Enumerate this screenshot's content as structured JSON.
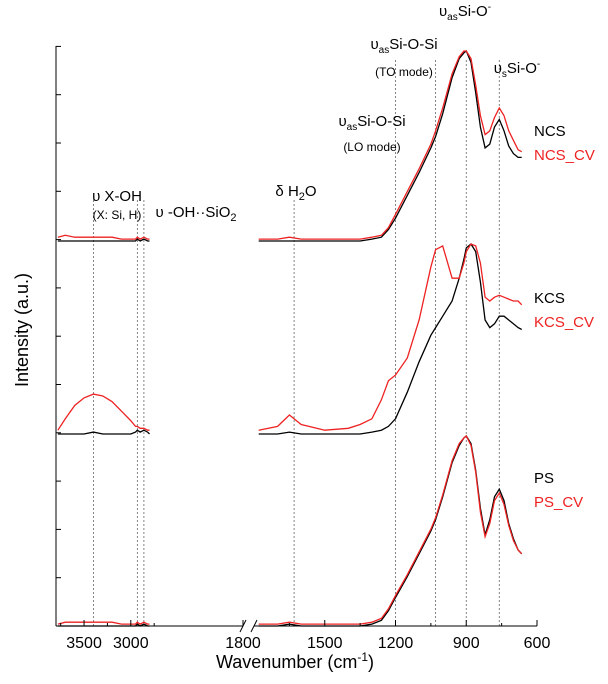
{
  "chart_data": {
    "type": "line",
    "xlabel": "Wavenumber (cm",
    "xlabel_sup": "-1",
    "xlabel_tail": ")",
    "ylabel": "Intensity (a.u.)",
    "x_segments": [
      {
        "range": [
          3800,
          1800
        ],
        "ticks": [
          3500,
          3000
        ]
      },
      {
        "range": [
          1800,
          600
        ],
        "ticks": [
          1800,
          1500,
          1200,
          900,
          600
        ]
      }
    ],
    "tick_labels": [
      "3500",
      "3000",
      "1800",
      "1500",
      "1200",
      "900",
      "600"
    ],
    "axis_break": true,
    "reference_lines": [
      3400,
      2930,
      2860,
      1630,
      1200,
      1030,
      900,
      760
    ],
    "panels": [
      {
        "series": [
          {
            "name": "NCS",
            "color": "#000000",
            "x": [
              3780,
              3700,
              3600,
              3500,
              3400,
              3300,
              3200,
              3100,
              3000,
              2950,
              2930,
              2900,
              2860,
              2820,
              2800,
              1780,
              1700,
              1650,
              1600,
              1500,
              1400,
              1350,
              1300,
              1260,
              1230,
              1200,
              1150,
              1100,
              1050,
              1030,
              1000,
              960,
              930,
              910,
              900,
              880,
              860,
              840,
              820,
              800,
              780,
              760,
              740,
              720,
              700,
              680,
              665
            ],
            "y": [
              0.0,
              0.0,
              0.0,
              0.0,
              0.0,
              0.0,
              0.0,
              0.0,
              0.0,
              0.0,
              0.01,
              0.0,
              0.01,
              0.0,
              0.0,
              0.0,
              0.0,
              0.0,
              0.0,
              0.0,
              0.0,
              0.0,
              0.01,
              0.02,
              0.06,
              0.12,
              0.24,
              0.36,
              0.49,
              0.55,
              0.67,
              0.86,
              0.96,
              0.99,
              1.0,
              0.94,
              0.78,
              0.6,
              0.49,
              0.51,
              0.6,
              0.64,
              0.58,
              0.5,
              0.46,
              0.44,
              0.44
            ]
          },
          {
            "name": "NCS_CV",
            "color": "#ee2222",
            "x": [
              3780,
              3700,
              3600,
              3500,
              3400,
              3300,
              3200,
              3100,
              3000,
              2950,
              2930,
              2900,
              2860,
              2820,
              2800,
              1780,
              1700,
              1650,
              1600,
              1500,
              1400,
              1350,
              1300,
              1260,
              1230,
              1200,
              1150,
              1100,
              1050,
              1030,
              1000,
              960,
              930,
              910,
              900,
              880,
              860,
              840,
              820,
              800,
              780,
              760,
              740,
              720,
              700,
              680,
              665
            ],
            "y": [
              0.02,
              0.03,
              0.02,
              0.02,
              0.02,
              0.02,
              0.02,
              0.01,
              0.01,
              0.01,
              0.02,
              0.01,
              0.02,
              0.01,
              0.01,
              0.01,
              0.01,
              0.02,
              0.01,
              0.01,
              0.01,
              0.01,
              0.02,
              0.03,
              0.07,
              0.14,
              0.26,
              0.38,
              0.51,
              0.58,
              0.7,
              0.88,
              0.97,
              1.0,
              1.0,
              0.96,
              0.82,
              0.66,
              0.56,
              0.58,
              0.65,
              0.7,
              0.66,
              0.58,
              0.53,
              0.48,
              0.47
            ]
          }
        ],
        "labels": [
          "NCS",
          "NCS_CV"
        ]
      },
      {
        "series": [
          {
            "name": "KCS",
            "color": "#000000",
            "x": [
              3780,
              3700,
              3600,
              3500,
              3400,
              3300,
              3200,
              3100,
              3000,
              2950,
              2930,
              2900,
              2860,
              2820,
              2800,
              1780,
              1700,
              1650,
              1600,
              1500,
              1400,
              1350,
              1300,
              1260,
              1230,
              1200,
              1150,
              1100,
              1050,
              1030,
              1000,
              960,
              930,
              910,
              900,
              880,
              860,
              840,
              820,
              800,
              780,
              760,
              740,
              720,
              700,
              680,
              665
            ],
            "y": [
              0.0,
              0.0,
              0.0,
              0.0,
              0.01,
              0.0,
              0.0,
              0.0,
              0.0,
              0.01,
              0.02,
              0.01,
              0.02,
              0.01,
              0.0,
              0.0,
              0.0,
              0.01,
              0.0,
              0.0,
              0.0,
              0.0,
              0.01,
              0.02,
              0.04,
              0.08,
              0.22,
              0.38,
              0.52,
              0.56,
              0.62,
              0.7,
              0.82,
              0.92,
              0.98,
              1.0,
              0.96,
              0.8,
              0.6,
              0.56,
              0.58,
              0.62,
              0.62,
              0.6,
              0.58,
              0.56,
              0.55
            ]
          },
          {
            "name": "KCS_CV",
            "color": "#ee2222",
            "x": [
              3780,
              3700,
              3600,
              3500,
              3400,
              3300,
              3200,
              3100,
              3000,
              2950,
              2930,
              2900,
              2860,
              2820,
              2800,
              1780,
              1700,
              1650,
              1600,
              1500,
              1400,
              1350,
              1300,
              1260,
              1230,
              1200,
              1150,
              1100,
              1050,
              1030,
              1000,
              960,
              930,
              910,
              900,
              880,
              860,
              840,
              820,
              800,
              780,
              760,
              740,
              720,
              700,
              680,
              665
            ],
            "y": [
              0.02,
              0.08,
              0.15,
              0.19,
              0.21,
              0.2,
              0.17,
              0.12,
              0.07,
              0.04,
              0.04,
              0.03,
              0.03,
              0.02,
              0.02,
              0.02,
              0.04,
              0.1,
              0.05,
              0.02,
              0.03,
              0.05,
              0.08,
              0.18,
              0.28,
              0.31,
              0.4,
              0.6,
              0.88,
              0.97,
              0.99,
              0.82,
              0.82,
              0.9,
              0.96,
              1.0,
              0.99,
              0.9,
              0.72,
              0.7,
              0.72,
              0.73,
              0.72,
              0.71,
              0.7,
              0.7,
              0.68
            ]
          }
        ],
        "labels": [
          "KCS",
          "KCS_CV"
        ]
      },
      {
        "series": [
          {
            "name": "PS",
            "color": "#000000",
            "x": [
              3780,
              3700,
              3600,
              3500,
              3400,
              3300,
              3200,
              3100,
              3000,
              2950,
              2930,
              2900,
              2860,
              2820,
              2800,
              1780,
              1700,
              1650,
              1600,
              1500,
              1400,
              1350,
              1300,
              1260,
              1230,
              1200,
              1150,
              1100,
              1050,
              1030,
              1000,
              960,
              930,
              910,
              900,
              880,
              860,
              840,
              820,
              800,
              780,
              760,
              740,
              720,
              700,
              680,
              665
            ],
            "y": [
              0.0,
              0.0,
              0.0,
              0.0,
              0.0,
              0.0,
              0.0,
              0.0,
              0.0,
              0.0,
              0.01,
              0.0,
              0.01,
              0.0,
              0.0,
              0.0,
              0.0,
              0.01,
              0.0,
              0.0,
              0.0,
              0.0,
              0.01,
              0.03,
              0.08,
              0.15,
              0.26,
              0.38,
              0.5,
              0.56,
              0.68,
              0.86,
              0.95,
              0.99,
              1.0,
              0.96,
              0.82,
              0.62,
              0.48,
              0.56,
              0.68,
              0.72,
              0.66,
              0.54,
              0.46,
              0.4,
              0.38
            ]
          },
          {
            "name": "PS_CV",
            "color": "#ee2222",
            "x": [
              3780,
              3700,
              3600,
              3500,
              3400,
              3300,
              3200,
              3100,
              3000,
              2950,
              2930,
              2900,
              2860,
              2820,
              2800,
              1780,
              1700,
              1650,
              1600,
              1500,
              1400,
              1350,
              1300,
              1260,
              1230,
              1200,
              1150,
              1100,
              1050,
              1030,
              1000,
              960,
              930,
              910,
              900,
              880,
              860,
              840,
              820,
              800,
              780,
              760,
              740,
              720,
              700,
              680,
              665
            ],
            "y": [
              0.01,
              0.02,
              0.02,
              0.02,
              0.02,
              0.02,
              0.02,
              0.01,
              0.01,
              0.01,
              0.02,
              0.01,
              0.02,
              0.01,
              0.01,
              0.01,
              0.01,
              0.02,
              0.01,
              0.01,
              0.01,
              0.01,
              0.02,
              0.04,
              0.09,
              0.16,
              0.27,
              0.39,
              0.51,
              0.57,
              0.69,
              0.87,
              0.96,
              0.99,
              1.0,
              0.95,
              0.81,
              0.6,
              0.47,
              0.54,
              0.66,
              0.7,
              0.64,
              0.53,
              0.45,
              0.4,
              0.38
            ]
          }
        ],
        "labels": [
          "PS",
          "PS_CV"
        ]
      }
    ],
    "annotations": {
      "oh_main": "υ X-OH",
      "oh_sub": "(X: Si, H)",
      "oh_hb": "υ -OH··SiO",
      "oh_hb_sub": "2",
      "water": "δ H",
      "water_sub": "2",
      "water_tail": "O",
      "lo_main": "υ",
      "lo_sub": "as",
      "lo_tail": "Si-O-Si",
      "lo_mode": "(LO mode)",
      "to_main": "υ",
      "to_sub": "as",
      "to_tail": "Si-O-Si",
      "to_mode": "(TO mode)",
      "asnbo_main": "υ",
      "asnbo_sub": "as",
      "asnbo_tail": "Si-O",
      "asnbo_sup": "-",
      "snbo_main": "υ",
      "snbo_sub": "s",
      "snbo_tail": "Si-O",
      "snbo_sup": "-"
    }
  }
}
